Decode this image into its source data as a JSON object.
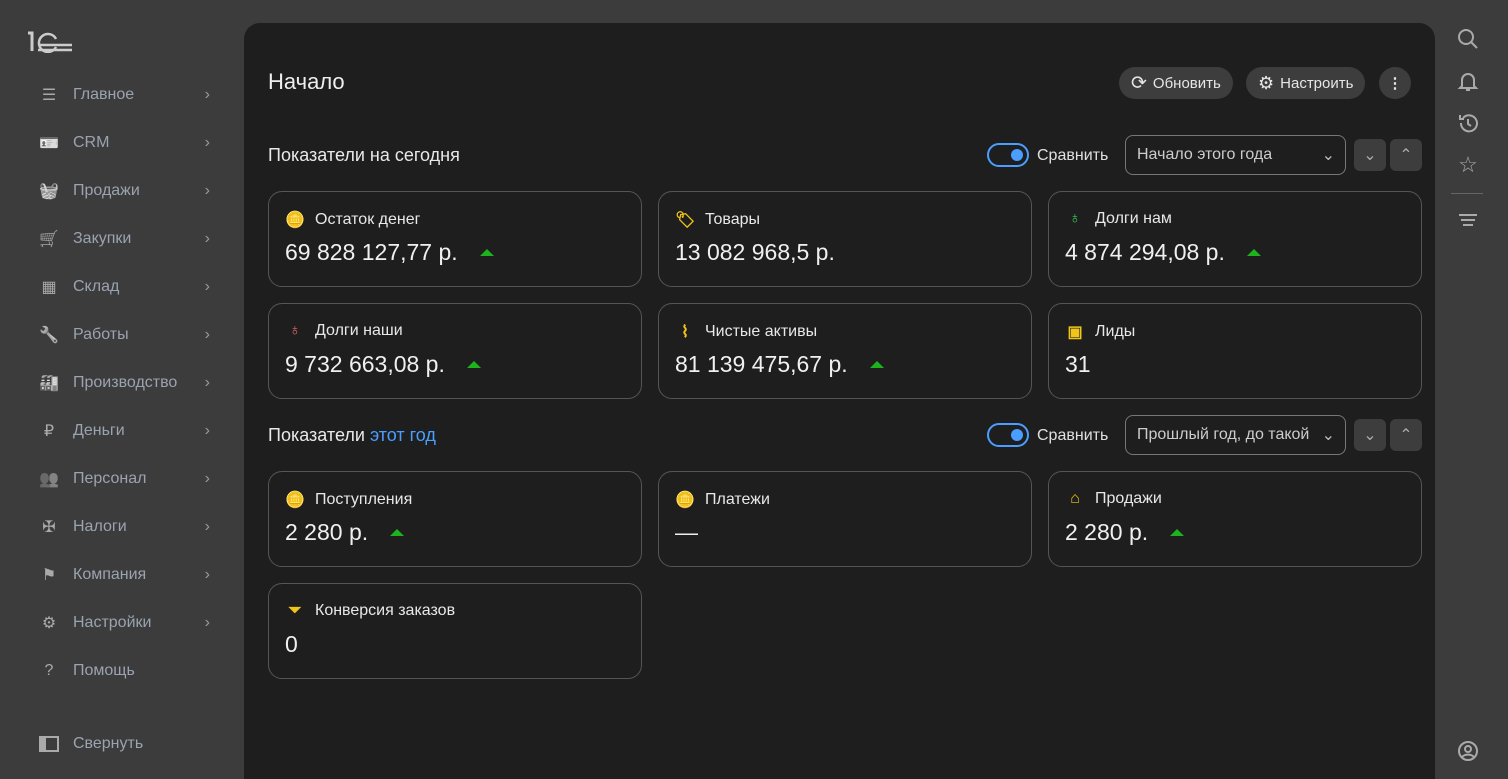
{
  "sidebar": {
    "logo": "1С",
    "items": [
      {
        "label": "Главное",
        "icon": "menu-icon"
      },
      {
        "label": "CRM",
        "icon": "contact-card-icon"
      },
      {
        "label": "Продажи",
        "icon": "basket-icon"
      },
      {
        "label": "Закупки",
        "icon": "cart-icon"
      },
      {
        "label": "Склад",
        "icon": "warehouse-icon"
      },
      {
        "label": "Работы",
        "icon": "wrench-icon"
      },
      {
        "label": "Производство",
        "icon": "factory-icon"
      },
      {
        "label": "Деньги",
        "icon": "ruble-icon"
      },
      {
        "label": "Персонал",
        "icon": "people-icon"
      },
      {
        "label": "Налоги",
        "icon": "eagle-icon"
      },
      {
        "label": "Компания",
        "icon": "flag-icon"
      },
      {
        "label": "Настройки",
        "icon": "gear-icon"
      },
      {
        "label": "Помощь",
        "icon": "help-icon"
      }
    ],
    "collapse": "Свернуть"
  },
  "header": {
    "title": "Начало",
    "refresh": "Обновить",
    "configure": "Настроить"
  },
  "today": {
    "title": "Показатели на сегодня",
    "compare": "Сравнить",
    "compare_on": true,
    "period": "Начало этого года",
    "cards": [
      {
        "label": "Остаток денег",
        "value": "69 828 127,77 р.",
        "trend": "up",
        "icon": "coins-icon",
        "color": "#4a9eff"
      },
      {
        "label": "Товары",
        "value": "13 082 968,5 р.",
        "trend": "",
        "icon": "tag-icon",
        "color": "#f0c419"
      },
      {
        "label": "Долги нам",
        "value": "4 874 294,08 р.",
        "trend": "up",
        "icon": "money-bag-icon",
        "color": "#3ec95c"
      },
      {
        "label": "Долги наши",
        "value": "9 732 663,08 р.",
        "trend": "up",
        "icon": "money-bag-icon",
        "color": "#e86a6a"
      },
      {
        "label": "Чистые активы",
        "value": "81 139 475,67 р.",
        "trend": "up",
        "icon": "activity-chart-icon",
        "color": "#f0c419"
      },
      {
        "label": "Лиды",
        "value": "31",
        "trend": "",
        "icon": "contact-card-icon",
        "color": "#f0c419"
      }
    ]
  },
  "year": {
    "title": "Показатели",
    "title_link": "этот год",
    "compare": "Сравнить",
    "compare_on": true,
    "period": "Прошлый год, до такой",
    "cards": [
      {
        "label": "Поступления",
        "value": "2 280 р.",
        "trend": "up",
        "icon": "coins-icon",
        "color": "#f0c419"
      },
      {
        "label": "Платежи",
        "value": "—",
        "trend": "",
        "icon": "coins-icon",
        "color": "#f0c419"
      },
      {
        "label": "Продажи",
        "value": "2 280 р.",
        "trend": "up",
        "icon": "basket-icon",
        "color": "#f0c419"
      },
      {
        "label": "Конверсия заказов",
        "value": "0",
        "trend": "",
        "icon": "funnel-icon",
        "color": "#f0c419"
      }
    ]
  }
}
